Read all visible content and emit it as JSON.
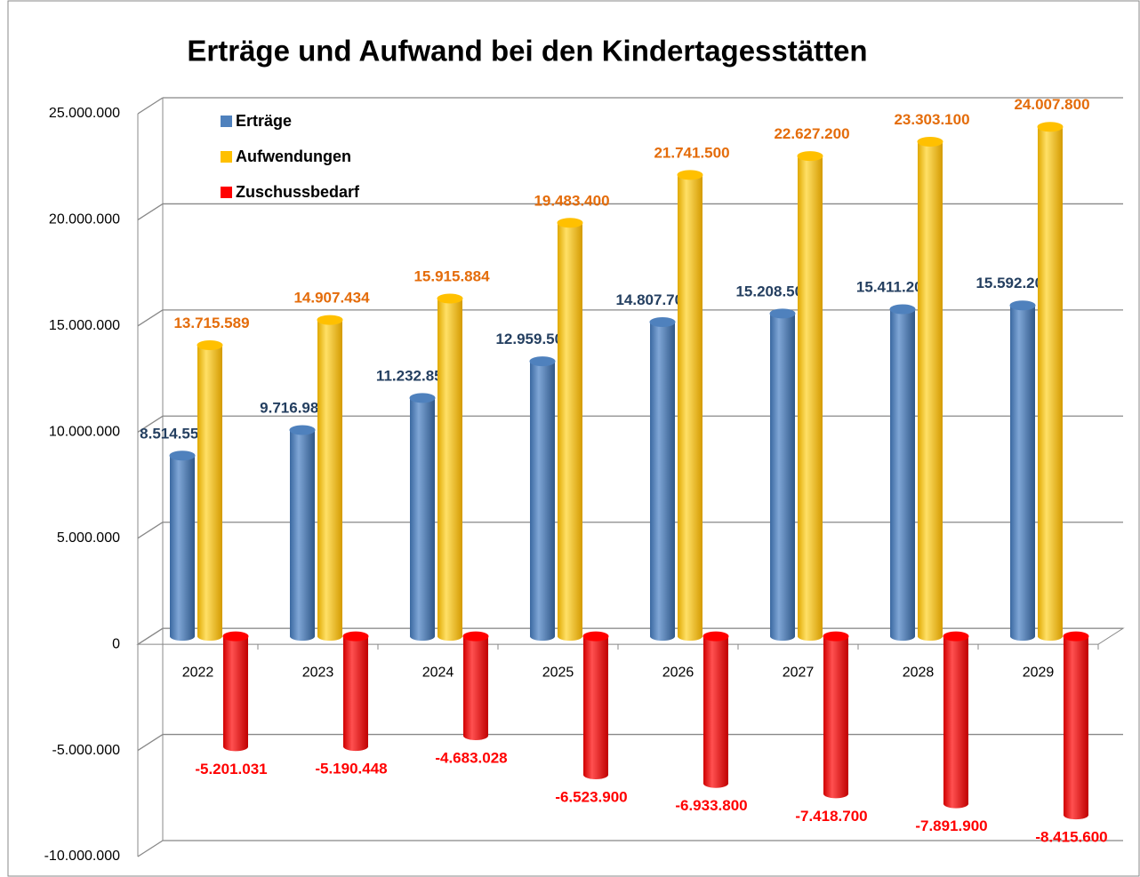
{
  "chart_data": {
    "type": "bar3d",
    "title": "Erträge und Aufwand bei den Kindertagesstätten",
    "categories": [
      "2022",
      "2023",
      "2024",
      "2025",
      "2026",
      "2027",
      "2028",
      "2029"
    ],
    "series": [
      {
        "name": "Erträge",
        "color": "#4f81bd",
        "label_color": "#243f60",
        "values": [
          8514557,
          9716986,
          11232856,
          12959500,
          14807700,
          15208500,
          15411200,
          15592200
        ],
        "value_labels": [
          "8.514.557",
          "9.716.986",
          "11.232.856",
          "12.959.500",
          "14.807.700",
          "15.208.500",
          "15.411.200",
          "15.592.200"
        ]
      },
      {
        "name": "Aufwendungen",
        "color": "#ffc000",
        "label_color": "#e46c0a",
        "values": [
          13715589,
          14907434,
          15915884,
          19483400,
          21741500,
          22627200,
          23303100,
          24007800
        ],
        "value_labels": [
          "13.715.589",
          "14.907.434",
          "15.915.884",
          "19.483.400",
          "21.741.500",
          "22.627.200",
          "23.303.100",
          "24.007.800"
        ]
      },
      {
        "name": "Zuschussbedarf",
        "color": "#ff0000",
        "label_color": "#ff0000",
        "values": [
          -5201031,
          -5190448,
          -4683028,
          -6523900,
          -6933800,
          -7418700,
          -7891900,
          -8415600
        ],
        "value_labels": [
          "-5.201.031",
          "-5.190.448",
          "-4.683.028",
          "-6.523.900",
          "-6.933.800",
          "-7.418.700",
          "-7.891.900",
          "-8.415.600"
        ]
      }
    ],
    "ylim": [
      -10000000,
      25000000
    ],
    "yticks": [
      {
        "value": -10000000,
        "label": "-10.000.000"
      },
      {
        "value": -5000000,
        "label": "-5.000.000"
      },
      0,
      {
        "value": 5000000,
        "label": "5.000.000"
      },
      {
        "value": 10000000,
        "label": "10.000.000"
      },
      {
        "value": 15000000,
        "label": "15.000.000"
      },
      {
        "value": 20000000,
        "label": "20.000.000"
      },
      {
        "value": 25000000,
        "label": "25.000.000"
      }
    ],
    "grid": true,
    "legend": "top-left"
  }
}
